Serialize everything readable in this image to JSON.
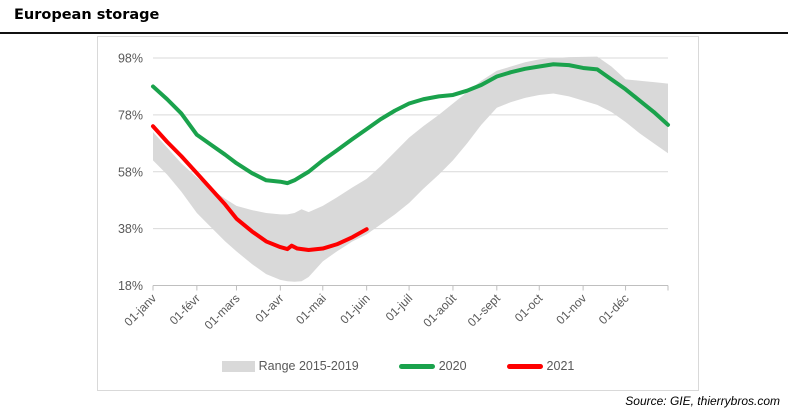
{
  "header": {
    "title": "European storage"
  },
  "source": {
    "label": "Source: GIE, thierrybros.com"
  },
  "legend": [
    {
      "kind": "band",
      "label": "Range 2015-2019",
      "color": "#D9D9D9"
    },
    {
      "kind": "line",
      "label": "2020",
      "color": "#1AA24C"
    },
    {
      "kind": "line",
      "label": "2021",
      "color": "#FE0000"
    }
  ],
  "colors": {
    "band": "#D9D9D9",
    "gridline": "#D9D9D9",
    "axis": "#BFBFBF",
    "tick_text": "#595959",
    "frame": "#D9D9D9",
    "series_2020": "#1AA24C",
    "series_2021": "#FE0000"
  },
  "chart_data": {
    "type": "line",
    "title": "European storage",
    "xlabel": "",
    "ylabel": "",
    "grid": true,
    "legend_position": "bottom",
    "ylim": [
      18,
      103
    ],
    "yticks": [
      18,
      38,
      58,
      78,
      98
    ],
    "ytick_labels": [
      "18%",
      "38%",
      "58%",
      "78%",
      "98%"
    ],
    "xtick_labels": [
      "01-janv",
      "01-févr",
      "01-mars",
      "01-avr",
      "01-mai",
      "01-juin",
      "01-juil",
      "01-août",
      "01-sept",
      "01-oct",
      "01-nov",
      "01-déc"
    ],
    "xtick_days": [
      0,
      31,
      59,
      90,
      120,
      151,
      181,
      212,
      243,
      273,
      304,
      334
    ],
    "x_axis_end_day": 364,
    "band": {
      "name": "Range 2015-2019",
      "unit": "percent",
      "days": [
        0,
        10,
        20,
        31,
        41,
        51,
        59,
        70,
        80,
        90,
        95,
        100,
        105,
        110,
        120,
        130,
        141,
        151,
        161,
        171,
        181,
        191,
        202,
        212,
        222,
        232,
        243,
        253,
        263,
        273,
        283,
        294,
        304,
        314,
        324,
        334,
        344,
        354,
        364
      ],
      "upper": [
        72,
        66.5,
        61,
        56,
        52,
        48.5,
        46,
        44.5,
        43.5,
        43,
        43,
        43.5,
        44.8,
        43.8,
        46,
        49,
        52.5,
        55.5,
        60,
        65,
        70,
        74,
        78,
        82,
        86,
        90,
        93.5,
        95,
        96.5,
        97.5,
        98,
        98.3,
        98.4,
        98.5,
        95,
        90.5,
        90,
        89.5,
        89
      ],
      "lower": [
        62,
        57,
        51,
        43.5,
        38.5,
        33.5,
        30,
        25.5,
        22,
        20,
        19.5,
        19.3,
        19.5,
        21,
        26.5,
        30,
        33.5,
        36,
        39.5,
        43,
        47,
        52,
        57,
        62,
        68,
        74.5,
        80.5,
        82.5,
        84,
        85,
        85.5,
        84.5,
        83,
        81.5,
        79,
        75.5,
        71.5,
        68,
        64.5
      ]
    },
    "series": [
      {
        "name": "2020",
        "unit": "percent",
        "days": [
          0,
          10,
          20,
          31,
          41,
          51,
          59,
          70,
          80,
          90,
          95,
          100,
          105,
          110,
          120,
          130,
          141,
          151,
          161,
          171,
          181,
          191,
          202,
          212,
          222,
          232,
          243,
          253,
          263,
          273,
          283,
          294,
          304,
          314,
          324,
          334,
          344,
          354,
          364
        ],
        "values": [
          88,
          83.5,
          78.5,
          71,
          67.5,
          64,
          61,
          57.5,
          55,
          54.5,
          54,
          55,
          56.5,
          58,
          62,
          65.5,
          69.5,
          73,
          76.5,
          79.5,
          82,
          83.5,
          84.5,
          85,
          86.5,
          88.5,
          91.5,
          93,
          94.2,
          95,
          95.8,
          95.5,
          94.5,
          94,
          90.5,
          87,
          83,
          79,
          74.5
        ]
      },
      {
        "name": "2021",
        "unit": "percent",
        "days": [
          0,
          10,
          20,
          31,
          41,
          51,
          59,
          70,
          80,
          90,
          95,
          98,
          102,
          110,
          120,
          130,
          141,
          151
        ],
        "values": [
          74,
          68.5,
          63.5,
          57.5,
          52,
          46.5,
          41.5,
          37,
          33.5,
          31.5,
          30.8,
          32,
          31,
          30.5,
          31,
          32.5,
          35,
          37.8
        ]
      }
    ]
  }
}
